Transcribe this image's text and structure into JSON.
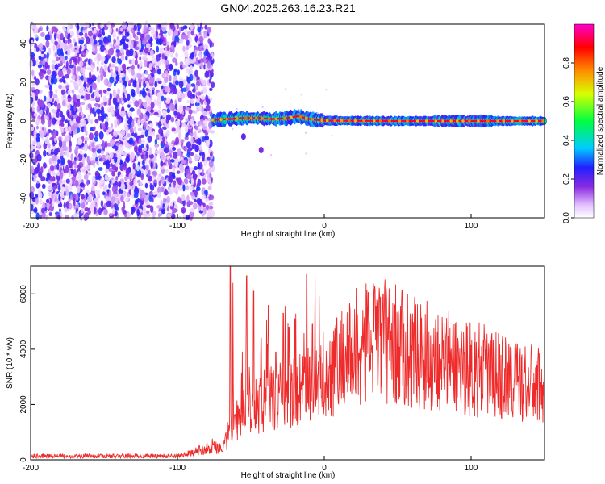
{
  "title": "GN04.2025.263.16.23.R21",
  "chart_data": [
    {
      "type": "heatmap",
      "xlabel": "Height of straight line (km)",
      "ylabel": "Frequency (Hz)",
      "xlim": [
        -200,
        150
      ],
      "ylim": [
        -50,
        50
      ],
      "x_ticks": [
        -200,
        -100,
        0,
        100
      ],
      "y_ticks": [
        -40,
        -20,
        0,
        20,
        40
      ],
      "colorbar": {
        "label": "Normalized spectral amplitude",
        "range": [
          0,
          1
        ],
        "ticks": [
          0.0,
          0.2,
          0.4,
          0.6,
          0.8
        ],
        "tick_labels": [
          "0.0",
          "0.2",
          "0.4",
          "0.6",
          "0.8"
        ],
        "colormap": "white-violet-blue-cyan-green-yellow-red-magenta"
      },
      "noise_region": {
        "x": [
          -200,
          -76
        ],
        "frequency": [
          -50,
          50
        ],
        "amplitude_range": [
          0.0,
          0.25
        ]
      },
      "signal_band": {
        "x": [
          -76,
          150
        ],
        "frequency_center": [
          [
            -76,
            0.5
          ],
          [
            -65,
            1.0
          ],
          [
            -55,
            1.5
          ],
          [
            -45,
            1.5
          ],
          [
            -35,
            1.0
          ],
          [
            -25,
            1.5
          ],
          [
            -18,
            2.5
          ],
          [
            -10,
            1.0
          ],
          [
            0,
            0.2
          ],
          [
            50,
            0.0
          ],
          [
            150,
            0.0
          ]
        ],
        "core_amplitude": 1.0
      },
      "side_features": [
        {
          "x": -55,
          "frequency": -8,
          "amplitude": 0.15
        },
        {
          "x": -43,
          "frequency": -15,
          "amplitude": 0.12
        }
      ]
    },
    {
      "type": "line",
      "xlabel": "Height of straight line (km)",
      "ylabel": "SNR (10 * v/v)",
      "xlim": [
        -200,
        150
      ],
      "ylim": [
        0,
        7000
      ],
      "x_ticks": [
        -200,
        -100,
        0,
        100
      ],
      "y_ticks": [
        0,
        2000,
        4000,
        6000
      ],
      "color": "#ee2a2a",
      "series": [
        {
          "name": "SNR",
          "envelope": [
            [
              -200,
              180
            ],
            [
              -100,
              180
            ],
            [
              -90,
              300
            ],
            [
              -80,
              550
            ],
            [
              -75,
              650
            ],
            [
              -70,
              500
            ],
            [
              -66,
              1000
            ],
            [
              -60,
              1500
            ],
            [
              -50,
              1900
            ],
            [
              -40,
              2200
            ],
            [
              -20,
              2500
            ],
            [
              0,
              3100
            ],
            [
              10,
              3700
            ],
            [
              20,
              4000
            ],
            [
              30,
              4300
            ],
            [
              40,
              4400
            ],
            [
              50,
              4200
            ],
            [
              60,
              4000
            ],
            [
              80,
              3700
            ],
            [
              100,
              3400
            ],
            [
              120,
              3100
            ],
            [
              140,
              2800
            ],
            [
              150,
              2700
            ]
          ],
          "spikes": [
            [
              -64,
              7000
            ],
            [
              -62,
              6400
            ],
            [
              -53,
              6650
            ],
            [
              -48,
              6100
            ],
            [
              -43,
              4400
            ],
            [
              -38,
              5600
            ],
            [
              -33,
              3900
            ],
            [
              -28,
              5300
            ],
            [
              -24,
              4800
            ],
            [
              -20,
              5100
            ],
            [
              -12,
              6700
            ],
            [
              -8,
              4900
            ],
            [
              22,
              6200
            ],
            [
              30,
              6050
            ],
            [
              40,
              6000
            ],
            [
              48,
              5600
            ]
          ]
        }
      ]
    }
  ]
}
